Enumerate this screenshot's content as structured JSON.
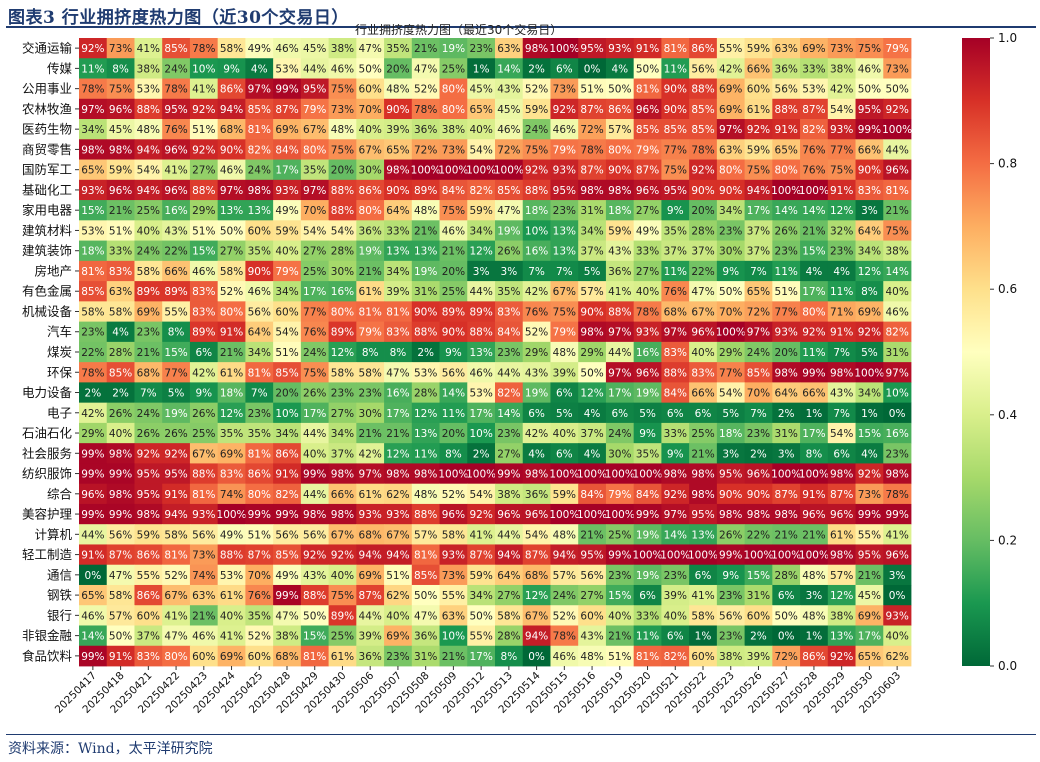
{
  "figure": {
    "title": "图表3 行业拥挤度热力图（近30个交易日）",
    "source": "资料来源：Wind，太平洋研究院"
  },
  "chart_data": {
    "type": "heatmap",
    "title": "行业拥挤度热力图（最近30个交易日）",
    "colormap": "RdYlGn_r",
    "vmin": 0.0,
    "vmax": 1.0,
    "colorbar_ticks": [
      "0.0",
      "0.2",
      "0.4",
      "0.6",
      "0.8",
      "1.0"
    ],
    "x": [
      "20250417",
      "20250418",
      "20250421",
      "20250422",
      "20250423",
      "20250424",
      "20250425",
      "20250428",
      "20250429",
      "20250430",
      "20250506",
      "20250507",
      "20250508",
      "20250509",
      "20250512",
      "20250513",
      "20250514",
      "20250515",
      "20250516",
      "20250519",
      "20250520",
      "20250521",
      "20250522",
      "20250523",
      "20250526",
      "20250527",
      "20250528",
      "20250529",
      "20250530",
      "20250603"
    ],
    "y": [
      "交通运输",
      "传媒",
      "公用事业",
      "农林牧渔",
      "医药生物",
      "商贸零售",
      "国防军工",
      "基础化工",
      "家用电器",
      "建筑材料",
      "建筑装饰",
      "房地产",
      "有色金属",
      "机械设备",
      "汽车",
      "煤炭",
      "环保",
      "电力设备",
      "电子",
      "石油石化",
      "社会服务",
      "纺织服饰",
      "综合",
      "美容护理",
      "计算机",
      "轻工制造",
      "通信",
      "钢铁",
      "银行",
      "非银金融",
      "食品饮料"
    ],
    "values": [
      [
        92,
        73,
        41,
        85,
        78,
        58,
        49,
        46,
        45,
        38,
        47,
        35,
        21,
        19,
        23,
        63,
        98,
        100,
        95,
        93,
        91,
        81,
        86,
        55,
        59,
        63,
        69,
        73,
        75,
        79
      ],
      [
        11,
        8,
        38,
        24,
        10,
        9,
        4,
        53,
        44,
        46,
        50,
        20,
        47,
        25,
        1,
        14,
        2,
        6,
        0,
        4,
        50,
        11,
        56,
        42,
        66,
        36,
        33,
        38,
        46,
        73
      ],
      [
        78,
        75,
        53,
        78,
        41,
        86,
        97,
        99,
        95,
        75,
        60,
        48,
        52,
        80,
        45,
        43,
        52,
        73,
        51,
        50,
        81,
        90,
        88,
        69,
        60,
        56,
        53,
        42,
        50,
        50
      ],
      [
        97,
        96,
        88,
        95,
        92,
        94,
        85,
        87,
        79,
        73,
        70,
        90,
        78,
        80,
        65,
        45,
        59,
        92,
        87,
        86,
        96,
        90,
        85,
        69,
        61,
        88,
        87,
        54,
        95,
        92
      ],
      [
        34,
        45,
        48,
        76,
        51,
        68,
        81,
        69,
        67,
        48,
        40,
        39,
        36,
        38,
        40,
        46,
        24,
        46,
        72,
        57,
        85,
        85,
        85,
        97,
        92,
        91,
        82,
        93,
        99,
        100
      ],
      [
        98,
        98,
        94,
        96,
        92,
        90,
        82,
        84,
        80,
        75,
        67,
        65,
        72,
        73,
        54,
        72,
        75,
        79,
        78,
        80,
        79,
        77,
        78,
        63,
        59,
        65,
        76,
        77,
        66,
        44
      ],
      [
        65,
        59,
        54,
        41,
        27,
        46,
        24,
        17,
        35,
        20,
        30,
        98,
        100,
        100,
        100,
        100,
        92,
        93,
        87,
        90,
        87,
        75,
        92,
        80,
        75,
        80,
        76,
        75,
        90,
        96
      ],
      [
        93,
        96,
        94,
        96,
        88,
        97,
        98,
        93,
        97,
        88,
        86,
        90,
        89,
        84,
        82,
        85,
        88,
        95,
        98,
        98,
        96,
        95,
        90,
        90,
        94,
        100,
        100,
        91,
        83,
        81
      ],
      [
        15,
        21,
        25,
        16,
        29,
        13,
        13,
        49,
        70,
        88,
        80,
        64,
        48,
        75,
        59,
        47,
        18,
        23,
        31,
        18,
        27,
        9,
        20,
        34,
        17,
        14,
        14,
        12,
        3,
        21
      ],
      [
        53,
        51,
        40,
        43,
        51,
        50,
        60,
        59,
        54,
        54,
        36,
        33,
        21,
        46,
        34,
        19,
        10,
        13,
        34,
        59,
        49,
        35,
        28,
        23,
        37,
        26,
        21,
        32,
        64,
        75
      ],
      [
        18,
        33,
        24,
        22,
        15,
        27,
        35,
        40,
        27,
        28,
        19,
        13,
        13,
        21,
        12,
        26,
        16,
        13,
        37,
        43,
        33,
        37,
        37,
        30,
        37,
        23,
        15,
        23,
        34,
        38
      ],
      [
        81,
        83,
        58,
        66,
        46,
        58,
        90,
        79,
        25,
        30,
        21,
        34,
        19,
        20,
        3,
        3,
        7,
        7,
        5,
        36,
        27,
        11,
        22,
        9,
        7,
        11,
        4,
        4,
        12,
        14
      ],
      [
        85,
        63,
        89,
        89,
        83,
        52,
        46,
        34,
        17,
        16,
        61,
        39,
        31,
        25,
        44,
        35,
        42,
        67,
        57,
        41,
        40,
        76,
        47,
        50,
        65,
        51,
        17,
        11,
        8,
        40
      ],
      [
        58,
        58,
        69,
        55,
        83,
        80,
        56,
        60,
        77,
        80,
        81,
        81,
        90,
        89,
        89,
        83,
        76,
        75,
        90,
        88,
        78,
        68,
        67,
        70,
        72,
        77,
        80,
        71,
        69,
        46
      ],
      [
        23,
        4,
        23,
        8,
        89,
        91,
        64,
        54,
        76,
        89,
        79,
        83,
        88,
        90,
        88,
        84,
        52,
        79,
        98,
        97,
        93,
        97,
        96,
        100,
        97,
        93,
        92,
        91,
        92,
        82
      ],
      [
        22,
        28,
        21,
        15,
        6,
        21,
        34,
        51,
        24,
        12,
        8,
        8,
        2,
        9,
        13,
        23,
        29,
        48,
        29,
        44,
        16,
        83,
        40,
        29,
        24,
        20,
        11,
        7,
        5,
        31
      ],
      [
        78,
        85,
        68,
        77,
        42,
        61,
        81,
        85,
        75,
        58,
        58,
        47,
        53,
        56,
        46,
        44,
        43,
        39,
        50,
        97,
        96,
        88,
        83,
        77,
        85,
        98,
        99,
        98,
        100,
        97
      ],
      [
        2,
        2,
        7,
        5,
        9,
        18,
        7,
        20,
        26,
        23,
        23,
        16,
        28,
        14,
        53,
        82,
        19,
        6,
        12,
        17,
        19,
        84,
        66,
        54,
        70,
        64,
        66,
        43,
        34,
        10
      ],
      [
        42,
        26,
        24,
        19,
        26,
        12,
        23,
        10,
        17,
        27,
        30,
        17,
        12,
        11,
        17,
        14,
        6,
        5,
        4,
        6,
        5,
        6,
        6,
        5,
        7,
        2,
        1,
        7,
        1,
        0
      ],
      [
        29,
        40,
        26,
        26,
        25,
        35,
        35,
        34,
        44,
        34,
        21,
        21,
        13,
        20,
        10,
        23,
        42,
        40,
        37,
        24,
        9,
        33,
        25,
        18,
        23,
        31,
        17,
        54,
        15,
        16
      ],
      [
        99,
        98,
        92,
        92,
        67,
        69,
        81,
        86,
        40,
        37,
        42,
        12,
        11,
        8,
        2,
        27,
        4,
        6,
        4,
        30,
        35,
        9,
        21,
        3,
        2,
        3,
        8,
        6,
        4,
        23
      ],
      [
        99,
        99,
        95,
        95,
        88,
        83,
        86,
        91,
        99,
        98,
        97,
        98,
        98,
        100,
        100,
        99,
        98,
        100,
        100,
        100,
        100,
        98,
        98,
        95,
        96,
        100,
        100,
        98,
        92,
        98
      ],
      [
        96,
        98,
        95,
        91,
        81,
        74,
        80,
        82,
        44,
        66,
        61,
        62,
        48,
        52,
        54,
        38,
        36,
        59,
        84,
        79,
        84,
        92,
        98,
        90,
        90,
        87,
        91,
        87,
        73,
        78
      ],
      [
        99,
        99,
        98,
        94,
        93,
        100,
        99,
        99,
        98,
        98,
        93,
        93,
        88,
        96,
        92,
        96,
        96,
        100,
        100,
        100,
        99,
        97,
        95,
        98,
        98,
        98,
        96,
        96,
        99,
        99
      ],
      [
        44,
        56,
        59,
        58,
        56,
        49,
        51,
        56,
        56,
        67,
        68,
        67,
        57,
        58,
        41,
        44,
        54,
        48,
        21,
        25,
        19,
        14,
        13,
        26,
        22,
        21,
        21,
        61,
        55,
        41
      ],
      [
        91,
        87,
        86,
        81,
        73,
        88,
        87,
        85,
        92,
        92,
        94,
        94,
        81,
        93,
        87,
        94,
        87,
        94,
        95,
        99,
        100,
        100,
        100,
        99,
        100,
        100,
        100,
        98,
        95,
        96
      ],
      [
        0,
        47,
        55,
        52,
        74,
        53,
        70,
        49,
        43,
        40,
        69,
        51,
        85,
        73,
        59,
        64,
        68,
        57,
        56,
        23,
        19,
        23,
        6,
        9,
        15,
        28,
        48,
        57,
        21,
        3
      ],
      [
        65,
        58,
        86,
        67,
        63,
        61,
        76,
        99,
        88,
        75,
        87,
        62,
        50,
        55,
        34,
        27,
        12,
        24,
        27,
        15,
        6,
        39,
        41,
        23,
        31,
        6,
        3,
        12,
        45,
        0
      ],
      [
        46,
        57,
        60,
        41,
        21,
        40,
        35,
        47,
        50,
        89,
        44,
        40,
        47,
        63,
        50,
        58,
        67,
        52,
        60,
        40,
        33,
        40,
        58,
        56,
        60,
        50,
        48,
        38,
        69,
        93
      ],
      [
        14,
        50,
        37,
        47,
        46,
        41,
        52,
        38,
        15,
        25,
        39,
        69,
        36,
        10,
        55,
        28,
        94,
        78,
        43,
        21,
        11,
        6,
        1,
        23,
        2,
        0,
        1,
        13,
        17,
        40
      ],
      [
        99,
        91,
        83,
        80,
        60,
        69,
        60,
        68,
        81,
        61,
        36,
        23,
        31,
        21,
        17,
        8,
        0,
        46,
        48,
        51,
        81,
        82,
        60,
        38,
        39,
        72,
        86,
        92,
        65,
        62
      ]
    ]
  }
}
